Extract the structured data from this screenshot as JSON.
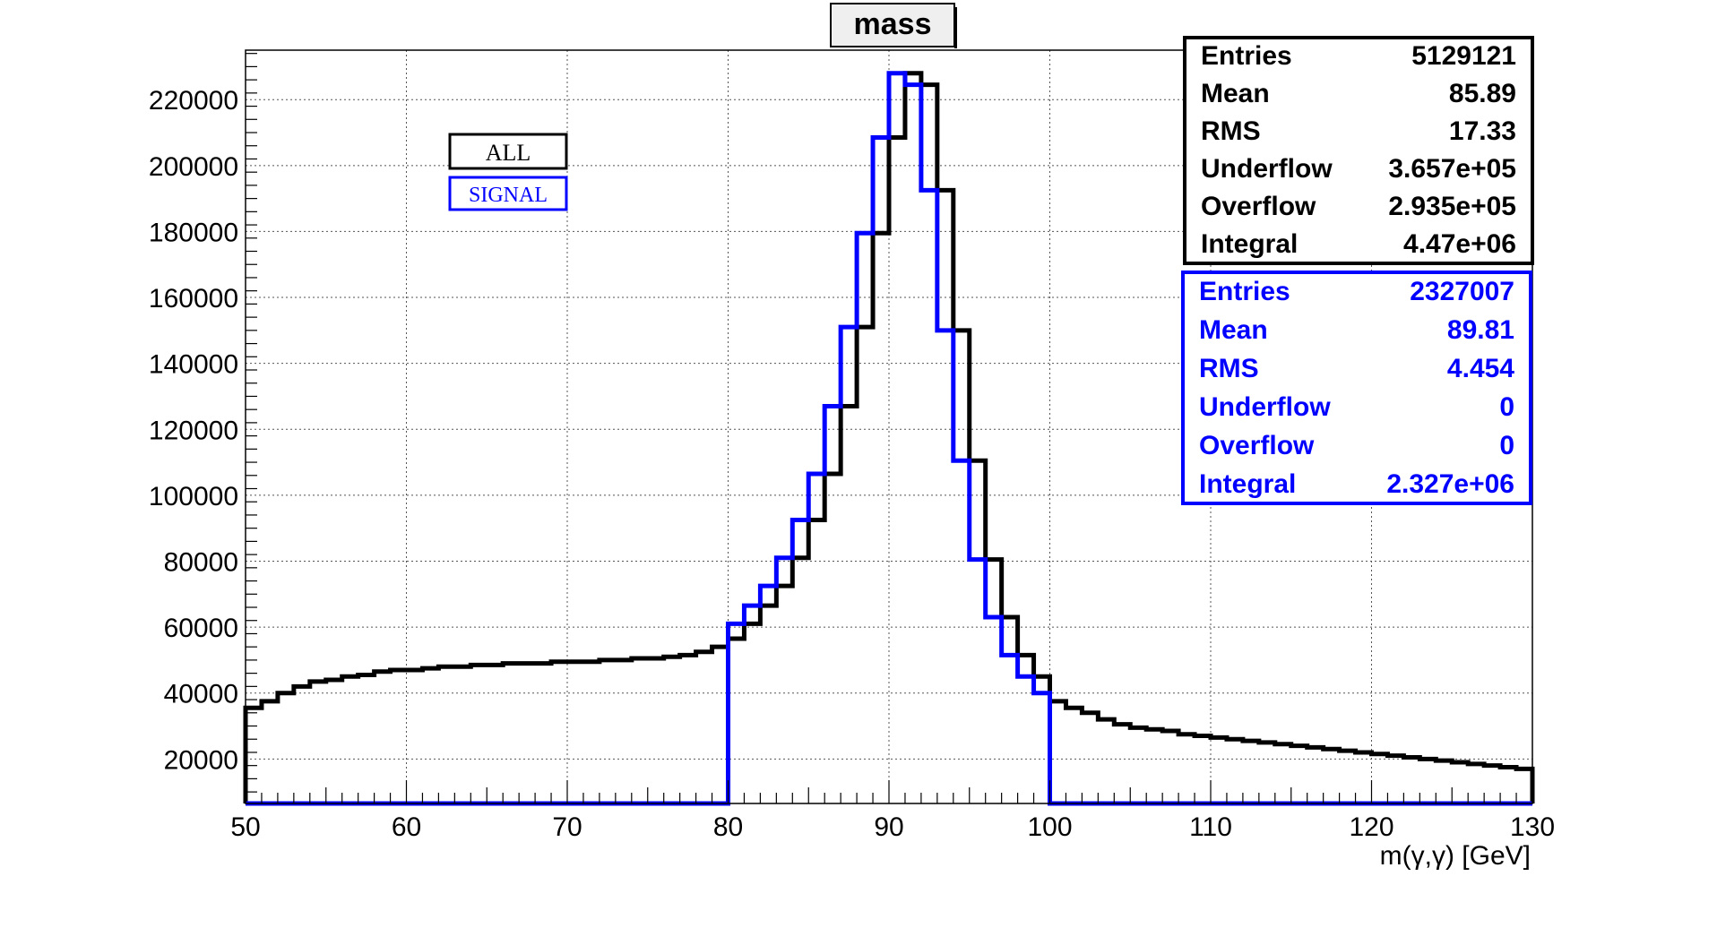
{
  "chart_data": {
    "type": "histogram",
    "title": "mass",
    "xlabel": "m(γ,γ) [GeV]",
    "ylabel": "",
    "xlim": [
      50,
      130
    ],
    "ylim": [
      6500,
      235000
    ],
    "x_ticks": [
      50,
      60,
      70,
      80,
      90,
      100,
      110,
      120,
      130
    ],
    "y_ticks": [
      20000,
      40000,
      60000,
      80000,
      100000,
      120000,
      140000,
      160000,
      180000,
      200000,
      220000
    ],
    "grid": true,
    "bin_edges": [
      50,
      51,
      52,
      53,
      54,
      55,
      56,
      57,
      58,
      59,
      60,
      61,
      62,
      63,
      64,
      65,
      66,
      67,
      68,
      69,
      70,
      71,
      72,
      73,
      74,
      75,
      76,
      77,
      78,
      79,
      80,
      81,
      82,
      83,
      84,
      85,
      86,
      87,
      88,
      89,
      90,
      91,
      92,
      93,
      94,
      95,
      96,
      97,
      98,
      99,
      100,
      101,
      102,
      103,
      104,
      105,
      106,
      107,
      108,
      109,
      110,
      111,
      112,
      113,
      114,
      115,
      116,
      117,
      118,
      119,
      120,
      121,
      122,
      123,
      124,
      125,
      126,
      127,
      128,
      129,
      130
    ],
    "series": [
      {
        "name": "ALL",
        "color": "#000000",
        "values": [
          35500,
          37500,
          40000,
          42000,
          43500,
          44000,
          45000,
          45500,
          46500,
          47000,
          47000,
          47500,
          48000,
          48000,
          48500,
          48500,
          49000,
          49000,
          49000,
          49500,
          49500,
          49500,
          50000,
          50000,
          50500,
          50500,
          51000,
          51500,
          52500,
          54000,
          56500,
          61000,
          66500,
          72500,
          81000,
          92500,
          106500,
          127000,
          151000,
          179500,
          208500,
          228000,
          224500,
          192500,
          150000,
          110500,
          80500,
          63000,
          51500,
          45000,
          37500,
          35500,
          34000,
          32000,
          30500,
          29500,
          29000,
          28500,
          27500,
          27000,
          26500,
          26000,
          25500,
          25000,
          24500,
          24000,
          23500,
          23000,
          22500,
          22000,
          21500,
          21000,
          20500,
          20000,
          19500,
          19000,
          18500,
          18000,
          17500,
          17000
        ]
      },
      {
        "name": "SIGNAL",
        "color": "#0000ff",
        "values": [
          0,
          0,
          0,
          0,
          0,
          0,
          0,
          0,
          0,
          0,
          0,
          0,
          0,
          0,
          0,
          0,
          0,
          0,
          0,
          0,
          0,
          0,
          0,
          0,
          0,
          0,
          0,
          0,
          0,
          0,
          61000,
          66500,
          72500,
          81000,
          92500,
          106500,
          127000,
          151000,
          179500,
          208500,
          228000,
          224500,
          192500,
          150000,
          110500,
          80500,
          63000,
          51500,
          45000,
          40000,
          0,
          0,
          0,
          0,
          0,
          0,
          0,
          0,
          0,
          0,
          0,
          0,
          0,
          0,
          0,
          0,
          0,
          0,
          0,
          0,
          0,
          0,
          0,
          0,
          0,
          0,
          0,
          0,
          0,
          0
        ]
      }
    ],
    "legend": {
      "placement": "top-left",
      "entries": [
        {
          "label": "ALL",
          "color": "#000000"
        },
        {
          "label": "SIGNAL",
          "color": "#0000ff"
        }
      ]
    },
    "stats_boxes": [
      {
        "series": "ALL",
        "color": "#000000",
        "rows": [
          {
            "label": "Entries",
            "value": "5129121"
          },
          {
            "label": "Mean",
            "value": "85.89"
          },
          {
            "label": "RMS",
            "value": "17.33"
          },
          {
            "label": "Underflow",
            "value": "3.657e+05"
          },
          {
            "label": "Overflow",
            "value": "2.935e+05"
          },
          {
            "label": "Integral",
            "value": "4.47e+06"
          }
        ]
      },
      {
        "series": "SIGNAL",
        "color": "#0000ff",
        "rows": [
          {
            "label": "Entries",
            "value": "2327007"
          },
          {
            "label": "Mean",
            "value": "89.81"
          },
          {
            "label": "RMS",
            "value": "4.454"
          },
          {
            "label": "Underflow",
            "value": "0"
          },
          {
            "label": "Overflow",
            "value": "0"
          },
          {
            "label": "Integral",
            "value": "2.327e+06"
          }
        ]
      }
    ]
  }
}
